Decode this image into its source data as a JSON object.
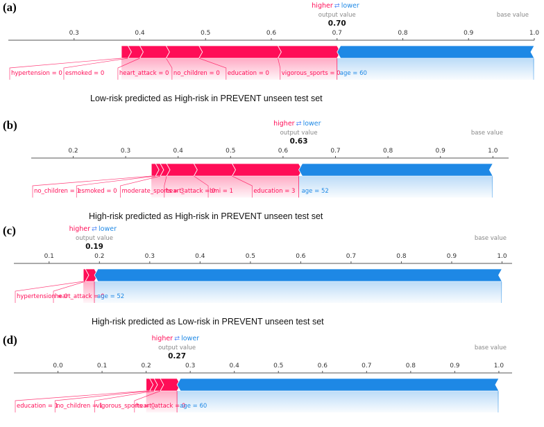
{
  "colors": {
    "positive": "#ff0d57",
    "negative": "#1e88e5",
    "arrow": "#5b8ff9"
  },
  "legend": {
    "higher": "higher",
    "lower": "lower",
    "arrow_glyph": "⇄"
  },
  "output_value_label": "output value",
  "base_value_label": "base value",
  "chart_data": [
    {
      "type": "force_plot",
      "panel": "(a)",
      "output_value": 0.7,
      "output_value_text": "0.70",
      "base_value": 1.0,
      "x_range": [
        0.2,
        1.0
      ],
      "ticks": [
        {
          "value": 0.3,
          "label": "0.3"
        },
        {
          "value": 0.4,
          "label": "0.4"
        },
        {
          "value": 0.5,
          "label": "0.5"
        },
        {
          "value": 0.6,
          "label": "0.6"
        },
        {
          "value": 0.7,
          "label": "0.7"
        },
        {
          "value": 0.8,
          "label": "0.8"
        },
        {
          "value": 0.9,
          "label": "0.9"
        },
        {
          "value": 1.0,
          "label": "1.0"
        }
      ],
      "higher_features": [
        {
          "label": "hypertension = 0",
          "start": 0.372,
          "end": 0.382
        },
        {
          "label": "esmoked = 0",
          "start": 0.382,
          "end": 0.4
        },
        {
          "label": "heart_attack = 0",
          "start": 0.4,
          "end": 0.44
        },
        {
          "label": "no_children = 0",
          "start": 0.44,
          "end": 0.49
        },
        {
          "label": "education = 0",
          "start": 0.49,
          "end": 0.61
        },
        {
          "label": "vigorous_sports = 0",
          "start": 0.61,
          "end": 0.7
        }
      ],
      "lower_features": [
        {
          "label": "age = 60",
          "start": 0.7,
          "end": 1.0
        }
      ],
      "caption": "Low-risk predicted as High-risk in PREVENT unseen test set"
    },
    {
      "type": "force_plot",
      "panel": "(b)",
      "output_value": 0.63,
      "output_value_text": "0.63",
      "base_value": 1.0,
      "x_range": [
        0.12,
        1.03
      ],
      "ticks": [
        {
          "value": 0.2,
          "label": "0.2"
        },
        {
          "value": 0.3,
          "label": "0.3"
        },
        {
          "value": 0.4,
          "label": "0.4"
        },
        {
          "value": 0.5,
          "label": "0.5"
        },
        {
          "value": 0.6,
          "label": "0.6"
        },
        {
          "value": 0.7,
          "label": "0.7"
        },
        {
          "value": 0.8,
          "label": "0.8"
        },
        {
          "value": 0.9,
          "label": "0.9"
        },
        {
          "value": 1.0,
          "label": "1.0"
        }
      ],
      "higher_features": [
        {
          "label": "no_children = 1",
          "start": 0.349,
          "end": 0.357
        },
        {
          "label": "esmoked = 0",
          "start": 0.357,
          "end": 0.366
        },
        {
          "label": "moderate_sports = 3",
          "start": 0.366,
          "end": 0.378
        },
        {
          "label": "heart_attack = 0",
          "start": 0.378,
          "end": 0.43
        },
        {
          "label": "bmi = 1",
          "start": 0.43,
          "end": 0.503
        },
        {
          "label": "education = 3",
          "start": 0.503,
          "end": 0.63
        }
      ],
      "lower_features": [
        {
          "label": "age = 52",
          "start": 0.63,
          "end": 1.0
        }
      ],
      "caption": "High-risk predicted as High-risk in PREVENT unseen test set"
    },
    {
      "type": "force_plot",
      "panel": "(c)",
      "output_value": 0.19,
      "output_value_text": "0.19",
      "base_value": 1.0,
      "x_range": [
        0.03,
        1.02
      ],
      "ticks": [
        {
          "value": 0.1,
          "label": "0.1"
        },
        {
          "value": 0.2,
          "label": "0.2"
        },
        {
          "value": 0.3,
          "label": "0.3"
        },
        {
          "value": 0.4,
          "label": "0.4"
        },
        {
          "value": 0.5,
          "label": "0.5"
        },
        {
          "value": 0.6,
          "label": "0.6"
        },
        {
          "value": 0.7,
          "label": "0.7"
        },
        {
          "value": 0.8,
          "label": "0.8"
        },
        {
          "value": 0.9,
          "label": "0.9"
        },
        {
          "value": 1.0,
          "label": "1.0"
        }
      ],
      "higher_features": [
        {
          "label": "hypertension = 0",
          "start": 0.168,
          "end": 0.172
        },
        {
          "label": "heart_attack = 0",
          "start": 0.172,
          "end": 0.19
        }
      ],
      "lower_features": [
        {
          "label": "age = 52",
          "start": 0.19,
          "end": 1.0
        }
      ],
      "caption": "High-risk predicted as Low-risk in PREVENT unseen test set"
    },
    {
      "type": "force_plot",
      "panel": "(d)",
      "output_value": 0.27,
      "output_value_text": "0.27",
      "base_value": 1.0,
      "x_range": [
        -0.1,
        1.03
      ],
      "ticks": [
        {
          "value": 0.0,
          "label": "0.0"
        },
        {
          "value": 0.1,
          "label": "0.1"
        },
        {
          "value": 0.2,
          "label": "0.2"
        },
        {
          "value": 0.3,
          "label": "0.3"
        },
        {
          "value": 0.4,
          "label": "0.4"
        },
        {
          "value": 0.5,
          "label": "0.5"
        },
        {
          "value": 0.6,
          "label": "0.6"
        },
        {
          "value": 0.7,
          "label": "0.7"
        },
        {
          "value": 0.8,
          "label": "0.8"
        },
        {
          "value": 0.9,
          "label": "0.9"
        },
        {
          "value": 1.0,
          "label": "1.0"
        }
      ],
      "higher_features": [
        {
          "label": "education = 1",
          "start": 0.2,
          "end": 0.208
        },
        {
          "label": "no_children = 1",
          "start": 0.208,
          "end": 0.218
        },
        {
          "label": "vigorous_sports = 0",
          "start": 0.218,
          "end": 0.232
        },
        {
          "label": "heart_attack = 0",
          "start": 0.232,
          "end": 0.27
        }
      ],
      "lower_features": [
        {
          "label": "age = 60",
          "start": 0.27,
          "end": 1.0
        }
      ],
      "caption": "Low-risk predicted as Low-risk in PREVENT unseen test set"
    }
  ]
}
